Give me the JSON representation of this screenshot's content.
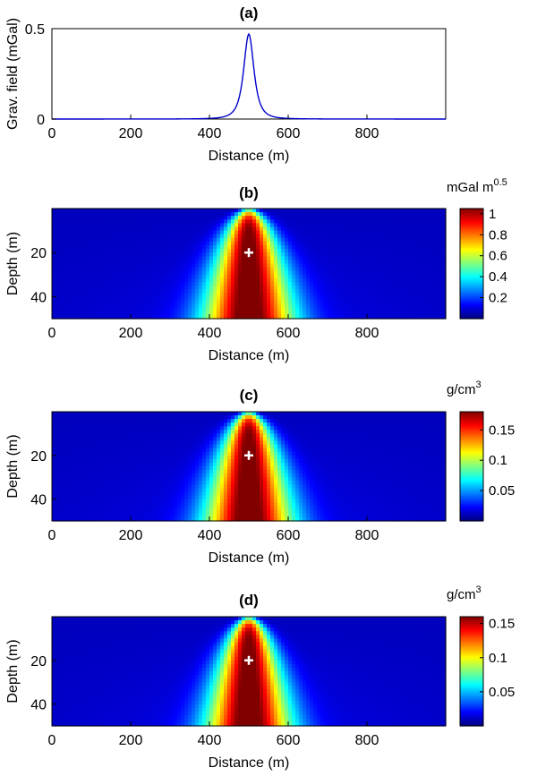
{
  "chart_data": [
    {
      "id": "a",
      "type": "line",
      "title": "(a)",
      "xlabel": "Distance (m)",
      "ylabel": "Grav. field (mGal)",
      "xlim": [
        0,
        1000
      ],
      "ylim": [
        0,
        0.5
      ],
      "xticks": [
        0,
        200,
        400,
        600,
        800
      ],
      "yticks": [
        0,
        0.5
      ],
      "line_color": "#0000cc",
      "peak": {
        "x": 500,
        "y": 0.47
      },
      "x": [
        0,
        50,
        100,
        150,
        200,
        250,
        300,
        350,
        400,
        420,
        440,
        460,
        470,
        480,
        490,
        495,
        500,
        505,
        510,
        520,
        530,
        540,
        560,
        580,
        600,
        650,
        700,
        750,
        800,
        850,
        900,
        950,
        1000
      ],
      "y": [
        0.0,
        0.0,
        0.0,
        0.001,
        0.002,
        0.003,
        0.005,
        0.008,
        0.02,
        0.03,
        0.05,
        0.1,
        0.15,
        0.25,
        0.38,
        0.44,
        0.47,
        0.44,
        0.38,
        0.25,
        0.15,
        0.1,
        0.05,
        0.03,
        0.02,
        0.01,
        0.005,
        0.003,
        0.002,
        0.001,
        0.0,
        0.0,
        0.0
      ]
    },
    {
      "id": "b",
      "type": "heatmap",
      "title": "(b)",
      "xlabel": "Distance (m)",
      "ylabel": "Depth (m)",
      "xlim": [
        0,
        1000
      ],
      "ylim": [
        0,
        50
      ],
      "xticks": [
        0,
        200,
        400,
        600,
        800
      ],
      "yticks": [
        20,
        40
      ],
      "colorbar_title": "mGal m",
      "colorbar_title_sup": "0.5",
      "colorbar_range": [
        0,
        1.05
      ],
      "colorbar_ticks": [
        {
          "value": 0.2,
          "label": "0.2"
        },
        {
          "value": 0.4,
          "label": "0.4"
        },
        {
          "value": 0.6,
          "label": "0.6"
        },
        {
          "value": 0.8,
          "label": "0.8"
        },
        {
          "value": 1.0,
          "label": "1"
        }
      ],
      "field": {
        "center_x": 500,
        "apex_depth": 1,
        "width_scale": 32,
        "max": 1.05
      },
      "marker": {
        "x": 500,
        "depth": 20,
        "symbol": "+"
      }
    },
    {
      "id": "c",
      "type": "heatmap",
      "title": "(c)",
      "xlabel": "Distance (m)",
      "ylabel": "Depth (m)",
      "xlim": [
        0,
        1000
      ],
      "ylim": [
        0,
        50
      ],
      "xticks": [
        0,
        200,
        400,
        600,
        800
      ],
      "yticks": [
        20,
        40
      ],
      "colorbar_title": "g/cm",
      "colorbar_title_sup": "3",
      "colorbar_range": [
        0,
        0.18
      ],
      "colorbar_ticks": [
        {
          "value": 0.05,
          "label": "0.05"
        },
        {
          "value": 0.1,
          "label": "0.1"
        },
        {
          "value": 0.15,
          "label": "0.15"
        }
      ],
      "field": {
        "center_x": 500,
        "apex_depth": 1,
        "width_scale": 31,
        "max": 0.18
      },
      "marker": {
        "x": 500,
        "depth": 20,
        "symbol": "+"
      }
    },
    {
      "id": "d",
      "type": "heatmap",
      "title": "(d)",
      "xlabel": "Distance (m)",
      "ylabel": "Depth (m)",
      "xlim": [
        0,
        1000
      ],
      "ylim": [
        0,
        50
      ],
      "xticks": [
        0,
        200,
        400,
        600,
        800
      ],
      "yticks": [
        20,
        40
      ],
      "colorbar_title": "g/cm",
      "colorbar_title_sup": "3",
      "colorbar_range": [
        0,
        0.16
      ],
      "colorbar_ticks": [
        {
          "value": 0.05,
          "label": "0.05"
        },
        {
          "value": 0.1,
          "label": "0.1"
        },
        {
          "value": 0.15,
          "label": "0.15"
        }
      ],
      "field": {
        "center_x": 500,
        "apex_depth": 1,
        "width_scale": 30,
        "max": 0.16
      },
      "marker": {
        "x": 500,
        "depth": 20,
        "symbol": "+"
      }
    }
  ]
}
